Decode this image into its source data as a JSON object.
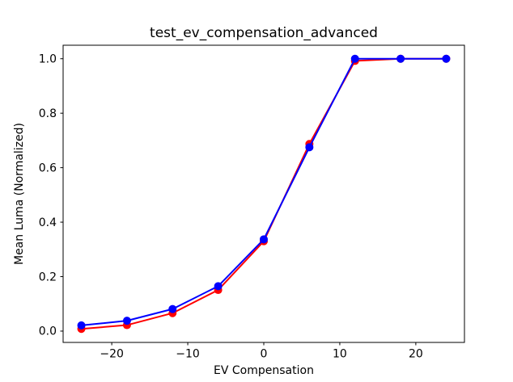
{
  "figure": {
    "background": "#ffffff",
    "frame_color": "#000000"
  },
  "chart_data": {
    "type": "line",
    "title": "test_ev_compensation_advanced",
    "xlabel": "EV Compensation",
    "ylabel": "Mean Luma (Normalized)",
    "x": [
      -24,
      -18,
      -12,
      -6,
      0,
      6,
      12,
      18,
      24
    ],
    "series": [
      {
        "name": "red-series",
        "color": "#ff0000",
        "values": [
          0.008,
          0.022,
          0.066,
          0.151,
          0.33,
          0.687,
          0.992,
          1.0,
          1.0
        ]
      },
      {
        "name": "blue-series",
        "color": "#0000ff",
        "values": [
          0.021,
          0.038,
          0.081,
          0.165,
          0.337,
          0.675,
          1.0,
          1.0,
          1.0
        ]
      }
    ],
    "marker": "circle",
    "marker_radius": 5,
    "line_width": 2,
    "xlim": [
      -26.4,
      26.4
    ],
    "ylim": [
      -0.0416,
      1.0496
    ],
    "xticks": {
      "values": [
        -20,
        -10,
        0,
        10,
        20
      ],
      "labels": [
        "−20",
        "−10",
        "0",
        "10",
        "20"
      ]
    },
    "yticks": {
      "values": [
        0,
        0.2,
        0.4,
        0.6,
        0.8,
        1.0
      ],
      "labels": [
        "0.0",
        "0.2",
        "0.4",
        "0.6",
        "0.8",
        "1.0"
      ]
    },
    "grid": false,
    "legend": null
  }
}
